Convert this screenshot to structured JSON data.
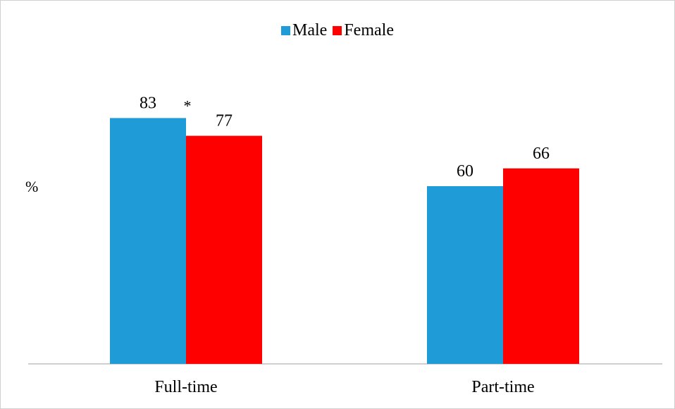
{
  "chart_data": {
    "type": "bar",
    "categories": [
      "Full-time",
      "Part-time"
    ],
    "series": [
      {
        "name": "Male",
        "values": [
          83,
          60
        ],
        "color": "#1f9bd7"
      },
      {
        "name": "Female",
        "values": [
          77,
          66
        ],
        "color": "#ff0000"
      }
    ],
    "ylabel": "%",
    "xlabel": "",
    "title": "",
    "ylim": [
      0,
      100
    ],
    "grid": false,
    "legend_position": "top-center",
    "annotations": [
      {
        "text": "*",
        "category": "Full-time"
      }
    ],
    "axis_color": "#bfbfbf"
  }
}
